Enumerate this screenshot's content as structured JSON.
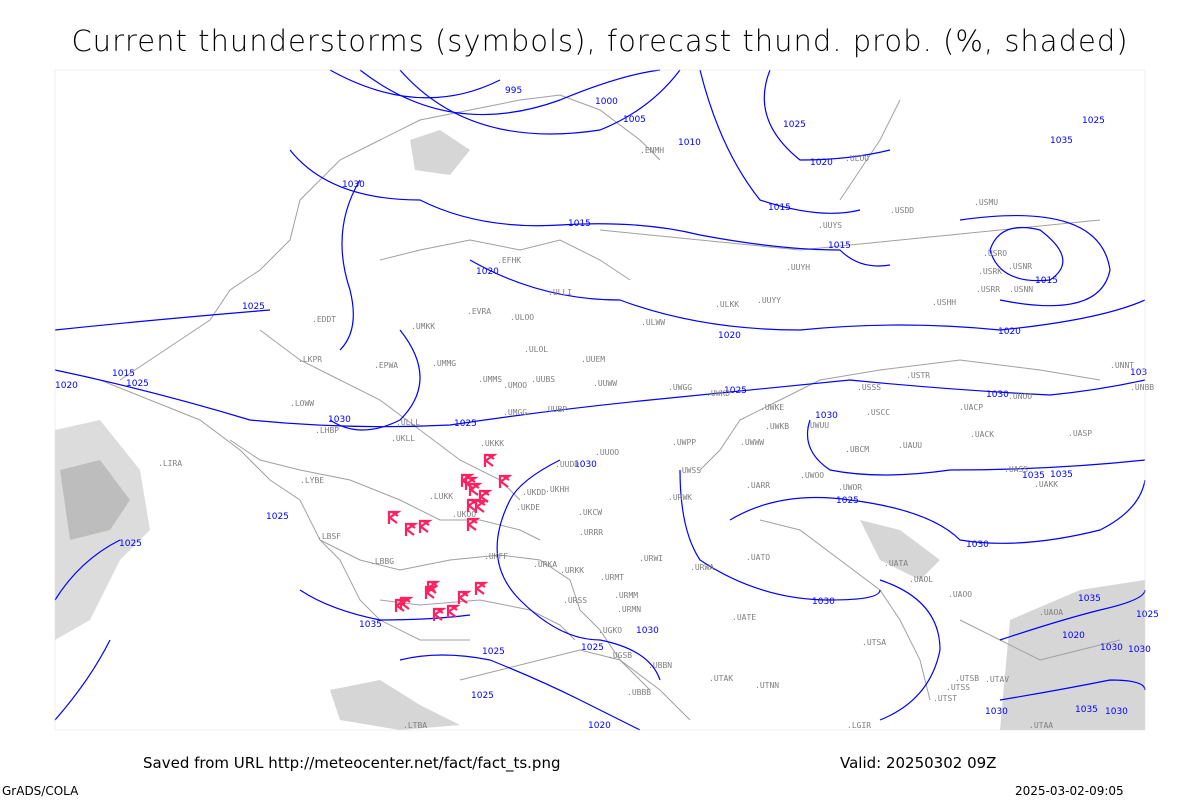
{
  "title": "Current thunderstorms (symbols), forecast thund. prob. (%, shaded)",
  "footer": {
    "source": "Saved from URL http://meteocenter.net/fact/fact_ts.png",
    "valid": "Valid: 20250302 09Z",
    "software": "GrADS/COLA",
    "timestamp": "2025-03-02-09:05"
  },
  "colors": {
    "isobar": "#0000ff",
    "border": "#a0a0a0",
    "station": "#808080",
    "thunderstorm": "#ff2060",
    "shade": "#d0d0d0"
  },
  "isobar_labels": [
    "995",
    "1000",
    "1005",
    "1010",
    "1025",
    "1020",
    "1015",
    "1015",
    "1015",
    "1020",
    "1015",
    "1020",
    "1025",
    "1035",
    "1030",
    "1025",
    "1020",
    "1015",
    "1025",
    "1030",
    "1020",
    "1025",
    "1030",
    "1025",
    "1030",
    "1030",
    "1035",
    "1025",
    "1025",
    "1030",
    "1035",
    "1025",
    "1030",
    "1035",
    "1025",
    "1025",
    "1030",
    "1020",
    "1030",
    "1025",
    "1020",
    "1030",
    "1035",
    "1025",
    "1030",
    "1030",
    "1035",
    "103"
  ],
  "stations": [
    "ENMH",
    "ULOO",
    "UUYS",
    "USDD",
    "USMU",
    "UUYH",
    "USRO",
    "USRK",
    "USNR",
    "USRR",
    "USNN",
    "ULKK",
    "UUYY",
    "USHH",
    "EFHK",
    "ULLI",
    "EVRA",
    "ULOO",
    "UMKK",
    "EDDT",
    "ULOL",
    "UUEM",
    "UUWW",
    "EPWA",
    "UMMG",
    "UMMS",
    "UMOO",
    "UUBS",
    "ULWW",
    "UWGG",
    "UWKD",
    "USSS",
    "USTR",
    "UNNT",
    "UNBB",
    "UMGG",
    "UUBP",
    "UWKE",
    "UWKB",
    "UWUU",
    "USCC",
    "UACP",
    "UNOO",
    "UACK",
    "UASP",
    "LKPR",
    "LOWW",
    "ULLL",
    "UKLL",
    "UKKK",
    "UUOO",
    "UUDD",
    "UWPP",
    "UWWW",
    "UBCM",
    "UAUU",
    "UASS",
    "LHBP",
    "LIRA",
    "LYBE",
    "UKHH",
    "UKDD",
    "UKDE",
    "UKCW",
    "UWSS",
    "URWK",
    "UARR",
    "UWOO",
    "UWOR",
    "UAKK",
    "LUKK",
    "UKOO",
    "URRR",
    "UATO",
    "UATA",
    "UAOL",
    "UAOO",
    "UATE",
    "UAOA",
    "LBSF",
    "LBBG",
    "UKFF",
    "URKA",
    "URKK",
    "URMT",
    "URWI",
    "URWA",
    "URMM",
    "URMN",
    "URSS",
    "UGKO",
    "UGSB",
    "UBBN",
    "UBBB",
    "UTAK",
    "UTNN",
    "UTSA",
    "UTSB",
    "UTSS",
    "UTAV",
    "UTST",
    "UTAA",
    "LGIR",
    "LTBA"
  ],
  "thunderstorm_count": 20
}
